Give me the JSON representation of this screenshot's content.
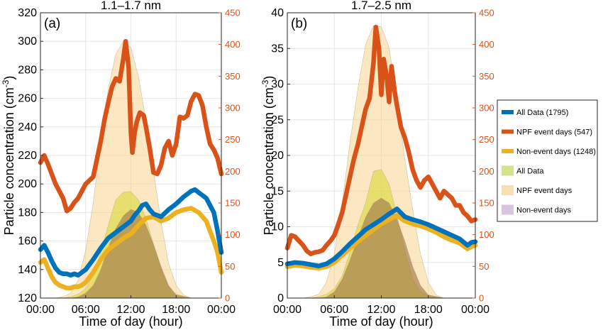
{
  "chart_data": [
    {
      "type": "line",
      "title": "1.1–1.7 nm",
      "panel_label": "(a)",
      "xlabel": "Time of day (hour)",
      "ylabel": "Particle concentration (cm",
      "ylabel_sup": "-3",
      "ylabel_close": ")",
      "x_ticks": [
        "00:00",
        "06:00",
        "12:00",
        "18:00",
        "00:00"
      ],
      "x_tick_hours": [
        0,
        6,
        12,
        18,
        24
      ],
      "xlim": [
        0,
        24
      ],
      "ylim_left": [
        120,
        320
      ],
      "y_ticks_left": [
        "120",
        "140",
        "160",
        "180",
        "200",
        "220",
        "240",
        "260",
        "280",
        "300",
        "320"
      ],
      "ylim_right": [
        0,
        450
      ],
      "y_ticks_right": [
        "0",
        "50",
        "100",
        "150",
        "200",
        "250",
        "300",
        "350",
        "400",
        "450"
      ],
      "grid": true,
      "series": [
        {
          "name": "All Data (1795)",
          "axis": "left",
          "color": "#0072bd",
          "x": [
            0,
            0.5,
            1,
            1.5,
            2,
            2.5,
            3,
            3.5,
            4,
            4.5,
            5,
            5.5,
            6,
            7,
            8,
            9,
            10,
            11,
            12,
            12.5,
            13,
            13.5,
            14,
            14.5,
            15,
            16,
            17,
            18,
            19,
            20,
            20.5,
            21,
            22,
            23,
            23.5,
            24
          ],
          "y": [
            154,
            157,
            152,
            146,
            141,
            138,
            137,
            137,
            136,
            137,
            136,
            138,
            140,
            147,
            155,
            162,
            166,
            170,
            174,
            178,
            181,
            185,
            186,
            182,
            179,
            177,
            182,
            186,
            191,
            195,
            196,
            194,
            190,
            180,
            167,
            152
          ]
        },
        {
          "name": "NPF event days (547)",
          "axis": "left",
          "color": "#d95319",
          "x": [
            0,
            0.5,
            1,
            1.5,
            2,
            2.5,
            3,
            3.5,
            4,
            4.5,
            5,
            5.5,
            6,
            7,
            8,
            8.5,
            9,
            9.5,
            10,
            10.5,
            11,
            11.3,
            11.7,
            12,
            12.2,
            12.5,
            12.8,
            13.2,
            13.7,
            14,
            14.5,
            15,
            15.5,
            16,
            16.5,
            17,
            17.5,
            18,
            18.5,
            19,
            19.5,
            20,
            20.5,
            21,
            21.5,
            22,
            22.5,
            23,
            23.5,
            24
          ],
          "y": [
            215,
            220,
            214,
            207,
            200,
            195,
            190,
            181,
            183,
            187,
            190,
            195,
            200,
            205,
            230,
            245,
            257,
            268,
            274,
            272,
            288,
            300,
            282,
            236,
            222,
            236,
            244,
            250,
            248,
            240,
            225,
            208,
            207,
            213,
            225,
            230,
            220,
            228,
            247,
            246,
            248,
            258,
            263,
            262,
            255,
            240,
            228,
            224,
            218,
            207
          ]
        },
        {
          "name": "Non-event days (1248)",
          "axis": "left",
          "color": "#edb120",
          "x": [
            0,
            0.5,
            1,
            1.5,
            2,
            2.5,
            3,
            3.5,
            4,
            4.5,
            5,
            5.5,
            6,
            7,
            8,
            9,
            10,
            11,
            12,
            13,
            14,
            15,
            16,
            17,
            18,
            19,
            20,
            21,
            22,
            23,
            23.5,
            24
          ],
          "y": [
            145,
            147,
            141,
            135,
            131,
            129,
            128,
            127,
            127,
            128,
            128,
            129,
            131,
            138,
            147,
            154,
            158,
            162,
            165,
            171,
            176,
            177,
            174,
            176,
            180,
            182,
            183,
            180,
            174,
            160,
            152,
            138
          ]
        },
        {
          "name": "All Data",
          "axis": "right",
          "type": "area",
          "color": "#d6d929",
          "opacity": 0.55,
          "x": [
            0,
            3,
            4,
            5,
            6,
            7,
            8,
            9,
            10,
            11,
            12,
            13,
            14,
            15,
            16,
            17,
            18,
            20,
            24
          ],
          "y": [
            0,
            0,
            2,
            6,
            15,
            35,
            72,
            115,
            155,
            167,
            168,
            155,
            125,
            85,
            45,
            18,
            6,
            0,
            0
          ]
        },
        {
          "name": "NPF event days",
          "axis": "right",
          "type": "area",
          "color": "#f7d48f",
          "opacity": 0.55,
          "x": [
            0,
            2,
            3,
            4,
            5,
            6,
            7,
            8,
            9,
            10,
            11,
            12,
            13,
            14,
            15,
            16,
            17,
            18,
            19,
            20,
            24
          ],
          "y": [
            0,
            0,
            2,
            8,
            28,
            75,
            150,
            245,
            330,
            385,
            405,
            395,
            350,
            280,
            200,
            120,
            55,
            20,
            5,
            0,
            0
          ]
        },
        {
          "name": "Non-event days",
          "axis": "right",
          "type": "area",
          "color": "#a37a4a",
          "opacity": 0.65,
          "x": [
            0,
            4,
            5,
            6,
            7,
            8,
            9,
            10,
            11,
            12,
            13,
            14,
            15,
            16,
            17,
            18,
            20,
            24
          ],
          "y": [
            0,
            0,
            2,
            8,
            20,
            45,
            80,
            110,
            130,
            140,
            135,
            115,
            85,
            50,
            20,
            5,
            0,
            0
          ]
        }
      ]
    },
    {
      "type": "line",
      "title": "1.7–2.5 nm",
      "panel_label": "(b)",
      "xlabel": "Time of day (hour)",
      "ylabel": "Particle concentration (cm",
      "ylabel_sup": "-3",
      "ylabel_close": ")",
      "x_ticks": [
        "00:00",
        "06:00",
        "12:00",
        "18:00",
        "00:00"
      ],
      "x_tick_hours": [
        0,
        6,
        12,
        18,
        24
      ],
      "xlim": [
        0,
        24
      ],
      "ylim_left": [
        0,
        40
      ],
      "y_ticks_left": [
        "0",
        "5",
        "10",
        "15",
        "20",
        "25",
        "30",
        "35",
        "40"
      ],
      "ylim_right": [
        0,
        450
      ],
      "y_ticks_right": [
        "0",
        "50",
        "100",
        "150",
        "200",
        "250",
        "300",
        "350",
        "400",
        "450"
      ],
      "grid": true,
      "series": [
        {
          "name": "All Data (1795)",
          "axis": "left",
          "color": "#0072bd",
          "x": [
            0,
            1,
            2,
            3,
            4,
            5,
            6,
            7,
            8,
            9,
            10,
            11,
            12,
            13,
            14,
            15,
            16,
            17,
            18,
            19,
            20,
            21,
            22,
            23,
            23.5,
            24
          ],
          "y": [
            4.8,
            5.0,
            4.9,
            4.7,
            4.5,
            4.8,
            5.5,
            6.5,
            7.6,
            8.6,
            9.6,
            10.3,
            11.0,
            11.8,
            12.5,
            11.4,
            11.0,
            10.7,
            10.3,
            9.8,
            9.3,
            8.8,
            8.3,
            7.4,
            7.8,
            7.9
          ]
        },
        {
          "name": "NPF event days (547)",
          "axis": "left",
          "color": "#d95319",
          "x": [
            0,
            0.5,
            1,
            1.5,
            2,
            2.5,
            3,
            3.5,
            4,
            4.5,
            5,
            5.5,
            6,
            6.5,
            7,
            7.5,
            8,
            8.5,
            9,
            9.5,
            10,
            10.5,
            11,
            11.3,
            11.7,
            12,
            12.3,
            12.7,
            13,
            13.3,
            13.7,
            14,
            14.5,
            15,
            15.5,
            16,
            16.5,
            17,
            17.5,
            18,
            18.5,
            19,
            19.5,
            20,
            20.5,
            21,
            21.5,
            22,
            22.5,
            23,
            23.5,
            24
          ],
          "y": [
            7.0,
            8.8,
            8.6,
            8.0,
            7.4,
            6.6,
            6.2,
            6.4,
            6.5,
            6.7,
            7.4,
            8.0,
            8.8,
            10.3,
            12.0,
            14.5,
            17.0,
            19.5,
            21.5,
            24.0,
            26.5,
            28.0,
            33.0,
            38.0,
            35.0,
            28.5,
            33.5,
            31.0,
            27.5,
            32.5,
            29.0,
            27.0,
            24.0,
            22.5,
            20.5,
            18.0,
            16.5,
            15.5,
            16.5,
            17.0,
            16.0,
            15.0,
            14.0,
            15.0,
            14.5,
            14.0,
            13.0,
            13.0,
            12.0,
            11.5,
            10.8,
            11.0
          ]
        },
        {
          "name": "Non-event days (1248)",
          "axis": "left",
          "color": "#edb120",
          "x": [
            0,
            1,
            2,
            3,
            4,
            5,
            6,
            7,
            8,
            9,
            10,
            11,
            12,
            13,
            14,
            15,
            16,
            17,
            18,
            19,
            20,
            21,
            22,
            23,
            23.5,
            24
          ],
          "y": [
            4.4,
            4.6,
            4.5,
            4.3,
            4.2,
            4.4,
            5.0,
            6.0,
            7.0,
            7.9,
            8.8,
            9.6,
            10.4,
            11.0,
            11.6,
            10.8,
            10.4,
            10.1,
            9.7,
            9.2,
            8.6,
            8.1,
            7.7,
            6.9,
            7.2,
            7.4
          ]
        },
        {
          "name": "All Data",
          "axis": "right",
          "type": "area",
          "color": "#d6d929",
          "opacity": 0.55,
          "x": [
            0,
            3,
            4,
            5,
            6,
            7,
            8,
            9,
            10,
            11,
            12,
            13,
            14,
            15,
            16,
            17,
            18,
            20,
            24
          ],
          "y": [
            0,
            0,
            2,
            6,
            15,
            35,
            72,
            115,
            150,
            200,
            203,
            180,
            130,
            75,
            30,
            10,
            3,
            0,
            0
          ]
        },
        {
          "name": "NPF event days",
          "axis": "right",
          "type": "area",
          "color": "#f7d48f",
          "opacity": 0.55,
          "x": [
            0,
            2,
            3,
            4,
            5,
            6,
            7,
            8,
            9,
            10,
            11,
            12,
            13,
            14,
            15,
            16,
            17,
            18,
            19,
            20,
            24
          ],
          "y": [
            0,
            0,
            2,
            6,
            25,
            70,
            150,
            245,
            330,
            400,
            430,
            428,
            395,
            310,
            220,
            140,
            70,
            25,
            5,
            0,
            0
          ]
        },
        {
          "name": "Non-event days",
          "axis": "right",
          "type": "area",
          "color": "#a37a4a",
          "opacity": 0.65,
          "x": [
            0,
            4,
            5,
            6,
            7,
            8,
            9,
            10,
            11,
            12,
            13,
            14,
            15,
            16,
            17,
            18,
            20,
            24
          ],
          "y": [
            0,
            0,
            2,
            10,
            30,
            60,
            95,
            128,
            150,
            158,
            150,
            125,
            90,
            50,
            20,
            5,
            0,
            0
          ]
        }
      ]
    }
  ],
  "legend": {
    "placement": "right",
    "items": [
      {
        "label": "All Data (1795)",
        "kind": "line",
        "color": "#0072bd"
      },
      {
        "label": "NPF event days (547)",
        "kind": "line",
        "color": "#d95319"
      },
      {
        "label": "Non-event days (1248)",
        "kind": "line",
        "color": "#edb120"
      },
      {
        "label": "All Data",
        "kind": "patch",
        "color": "#d6e38a"
      },
      {
        "label": "NPF event days",
        "kind": "patch",
        "color": "#f8dfb1"
      },
      {
        "label": "Non-event days",
        "kind": "patch",
        "color": "#d8c4dd"
      }
    ]
  }
}
